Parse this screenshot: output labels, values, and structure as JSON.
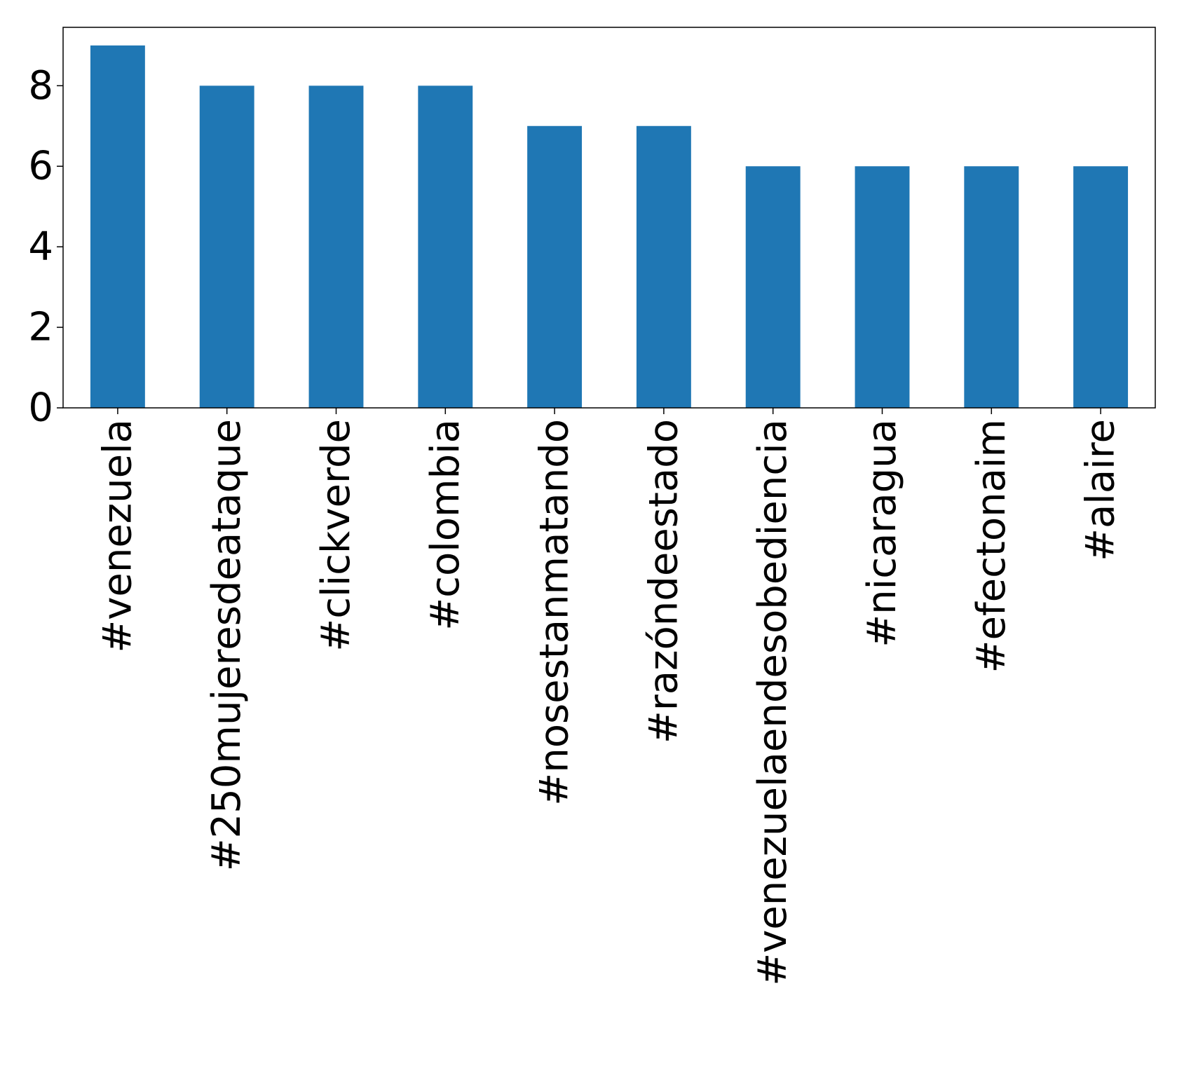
{
  "chart_data": {
    "type": "bar",
    "title": "",
    "xlabel": "",
    "ylabel": "",
    "categories": [
      "#venezuela",
      "#250mujeresdeataque",
      "#clickverde",
      "#colombia",
      "#nosestanmatando",
      "#razóndeestado",
      "#venezuelaendesobediencia",
      "#nicaragua",
      "#efectonaim",
      "#alaire"
    ],
    "values": [
      9,
      8,
      8,
      8,
      7,
      7,
      6,
      6,
      6,
      6
    ],
    "ylim": [
      0,
      9.45
    ],
    "yticks": [
      0,
      2,
      4,
      6,
      8
    ],
    "ytick_labels": [
      "0",
      "2",
      "4",
      "6",
      "8"
    ],
    "grid": false,
    "legend": "none",
    "bar_color": "#1f77b4"
  }
}
